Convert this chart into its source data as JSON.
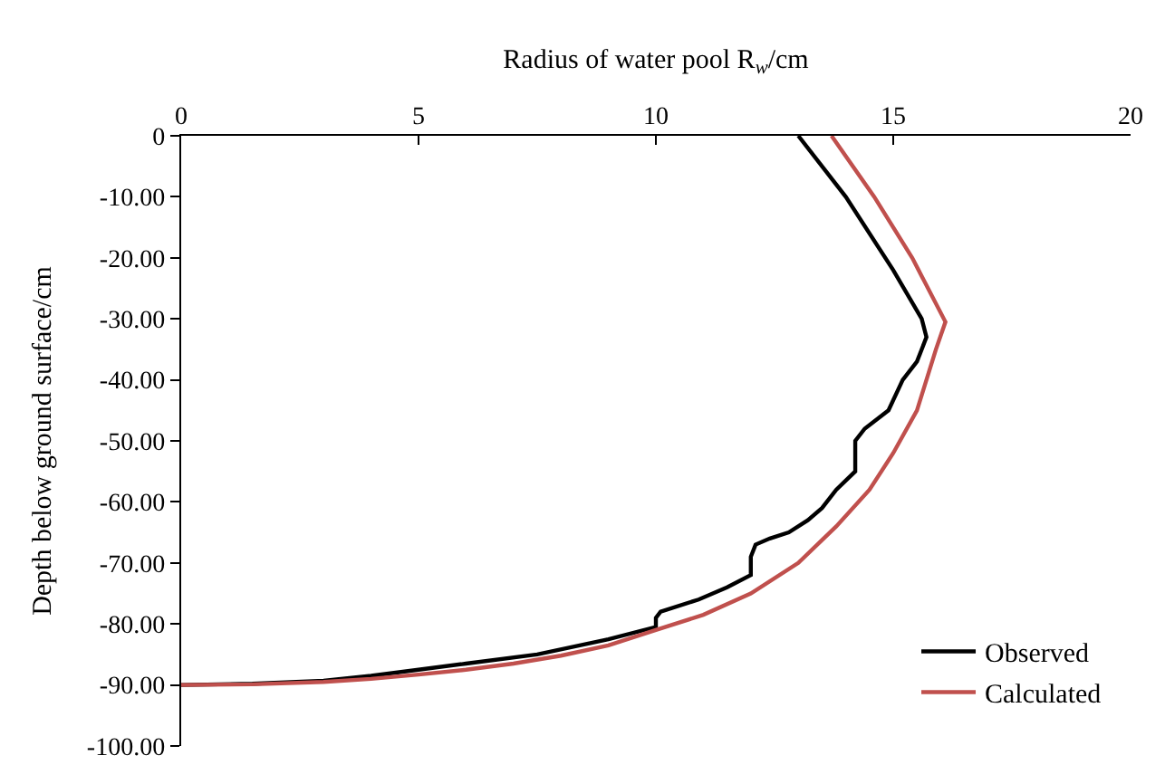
{
  "chart_data": {
    "type": "line",
    "xlabel": "Radius of water pool R$_{w}$/cm",
    "ylabel": "Depth below ground surface/cm",
    "xlim": [
      0,
      20
    ],
    "xticks": [
      0,
      5,
      10,
      15,
      20
    ],
    "ylim": [
      -100,
      0
    ],
    "yticks": [
      0,
      {
        "value": -10,
        "label": "-10.00"
      },
      {
        "value": -20,
        "label": "-20.00"
      },
      {
        "value": -30,
        "label": "-30.00"
      },
      {
        "value": -40,
        "label": "-40.00"
      },
      {
        "value": -50,
        "label": "-50.00"
      },
      {
        "value": -60,
        "label": "-60.00"
      },
      {
        "value": -70,
        "label": "-70.00"
      },
      {
        "value": -80,
        "label": "-80.00"
      },
      {
        "value": -90,
        "label": "-90.00"
      },
      {
        "value": -100,
        "label": "-100.00"
      }
    ],
    "grid": false,
    "legend": "bottom right",
    "marker": "none",
    "line_style": "solid",
    "series": [
      {
        "name": "Observed",
        "color": "#000000",
        "x": [
          13.0,
          14.0,
          15.0,
          15.6,
          15.7,
          15.5,
          15.2,
          14.9,
          14.4,
          14.2,
          14.2,
          13.8,
          13.5,
          13.2,
          12.8,
          12.4,
          12.1,
          12.0,
          12.0,
          11.5,
          10.9,
          10.1,
          10.0,
          10.0,
          9.0,
          7.5,
          6.0,
          5.0,
          4.0,
          3.0,
          1.5,
          0
        ],
        "values": [
          0,
          -10,
          -22,
          -30,
          -33,
          -37,
          -40,
          -45,
          -48,
          -50,
          -55,
          -58,
          -61,
          -63,
          -65,
          -66,
          -67,
          -69,
          -72,
          -74,
          -76,
          -78,
          -79,
          -80.5,
          -82.5,
          -85,
          -86.5,
          -87.5,
          -88.5,
          -89.3,
          -89.8,
          -90
        ]
      },
      {
        "name": "Calculated",
        "color": "#c0504d",
        "x": [
          13.7,
          14.6,
          15.4,
          16.1,
          15.9,
          15.5,
          15.0,
          14.5,
          13.8,
          13.0,
          12.0,
          11.0,
          10.0,
          9.0,
          8.0,
          7.0,
          6.0,
          5.0,
          4.0,
          3.0,
          1.5,
          0
        ],
        "values": [
          0,
          -10,
          -20,
          -30.5,
          -35,
          -45,
          -52,
          -58,
          -64,
          -70,
          -75,
          -78.5,
          -81,
          -83.5,
          -85.2,
          -86.5,
          -87.5,
          -88.3,
          -89,
          -89.5,
          -89.9,
          -90
        ]
      }
    ]
  }
}
